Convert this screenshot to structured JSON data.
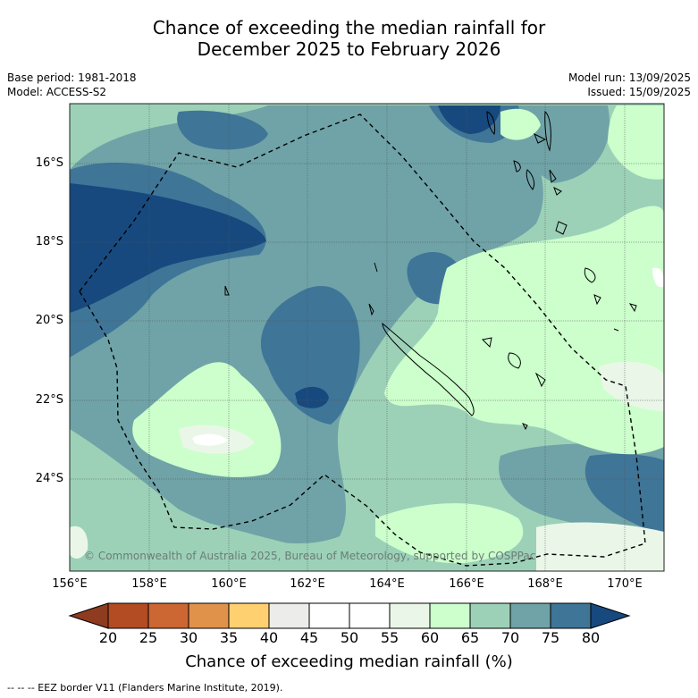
{
  "title": {
    "line1": "Chance of exceeding the median rainfall for",
    "line2": "December 2025 to February 2026"
  },
  "meta": {
    "base_period": "Base period: 1981-2018",
    "model": "Model: ACCESS-S2",
    "model_run": "Model run: 13/09/2025",
    "issued": "Issued: 15/09/2025"
  },
  "map": {
    "copyright": "© Commonwealth of Australia 2025, Bureau of Meteorology, supported by COSPPac",
    "lat_labels": [
      "16°S",
      "18°S",
      "20°S",
      "22°S",
      "24°S"
    ],
    "lon_labels": [
      "156°E",
      "158°E",
      "160°E",
      "162°E",
      "164°E",
      "166°E",
      "168°E",
      "170°E"
    ],
    "grid": true,
    "eez_line_color": "#000000"
  },
  "colorbar": {
    "label": "Chance of exceeding median rainfall (%)",
    "ticks": [
      "20",
      "25",
      "30",
      "35",
      "40",
      "45",
      "50",
      "55",
      "60",
      "65",
      "70",
      "75",
      "80"
    ],
    "colors": [
      "#8e3b20",
      "#b34b23",
      "#cc6633",
      "#e0924a",
      "#ffd070",
      "#ececea",
      "#ffffff",
      "#ffffff",
      "#eaf7e8",
      "#ccffcc",
      "#9cd1b8",
      "#6fa3a7",
      "#3f7597",
      "#17497e"
    ]
  },
  "footer": "--  --  -- EEZ border V11 (Flanders Marine Institute, 2019)."
}
